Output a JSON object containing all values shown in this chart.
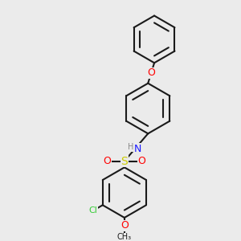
{
  "bg_color": "#ebebeb",
  "bond_color": "#1a1a1a",
  "bond_lw": 1.5,
  "font_size": 9,
  "colors": {
    "N": "#1a1aff",
    "O": "#ff0000",
    "S": "#cccc00",
    "Cl": "#33cc33",
    "H": "#888888",
    "C": "#1a1a1a"
  }
}
